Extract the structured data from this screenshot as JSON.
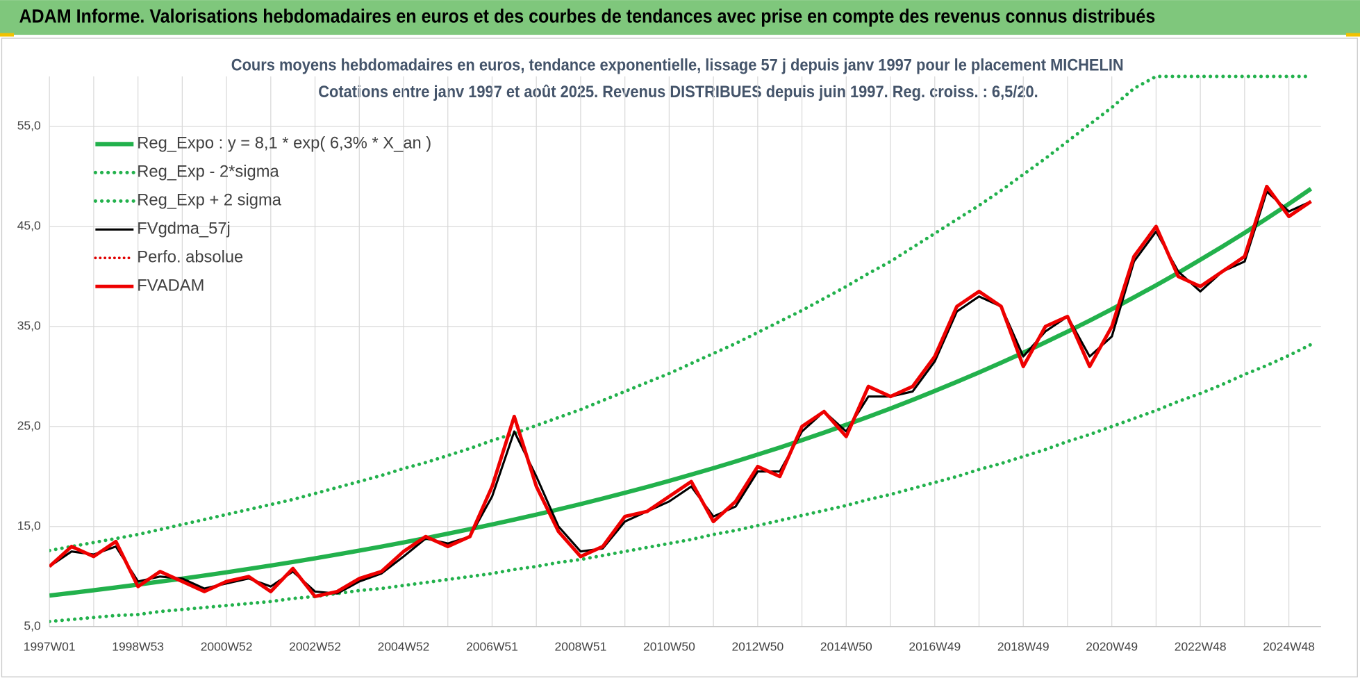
{
  "header": {
    "title": "ADAM Informe. Valorisations hebdomadaires en euros et des courbes de tendances avec prise en compte des revenus connus distribués"
  },
  "chart_data": {
    "type": "line",
    "title": "Cours moyens hebdomadaires en euros, tendance exponentielle, lissage 57 j depuis janv 1997 pour le placement MICHELIN",
    "subtitle": "Cotations entre janv 1997 et août 2025.  Revenus DISTRIBUES depuis juin 1997. Reg. croiss. : 6,5/20.",
    "categories": [
      "1997W01",
      null,
      null,
      null,
      "1998W53",
      null,
      null,
      null,
      "2000W52",
      null,
      null,
      null,
      "2002W52",
      null,
      null,
      null,
      "2004W52",
      null,
      null,
      null,
      "2006W51",
      null,
      null,
      null,
      "2008W51",
      null,
      null,
      null,
      "2010W50",
      null,
      null,
      null,
      "2012W50",
      null,
      null,
      null,
      "2014W50",
      null,
      null,
      null,
      "2016W49",
      null,
      null,
      null,
      "2018W49",
      null,
      null,
      null,
      "2020W49",
      null,
      null,
      null,
      "2022W48",
      null,
      null,
      null,
      "2024W48",
      null
    ],
    "ylim": [
      5,
      60
    ],
    "yticks": [
      {
        "value": 5,
        "label": "5,0"
      },
      {
        "value": 15,
        "label": "15,0"
      },
      {
        "value": 25,
        "label": "25,0"
      },
      {
        "value": 35,
        "label": "35,0"
      },
      {
        "value": 45,
        "label": "45,0"
      },
      {
        "value": 55,
        "label": "55,0"
      }
    ],
    "grid": true,
    "legend": "top-left",
    "series": [
      {
        "name": "Reg_Expo : y = 8,1 * exp( 6,3% *  X_an )",
        "color": "#22b14c",
        "style": "solid",
        "width": 5,
        "values": [
          8.1,
          8.36,
          8.63,
          8.9,
          9.19,
          9.49,
          9.78,
          10.1,
          10.42,
          10.76,
          11.1,
          11.45,
          11.82,
          12.2,
          12.59,
          12.99,
          13.41,
          13.83,
          14.28,
          14.73,
          15.2,
          15.69,
          16.19,
          16.71,
          17.24,
          17.8,
          18.37,
          18.95,
          19.56,
          20.19,
          20.83,
          21.5,
          22.19,
          22.9,
          23.63,
          24.39,
          25.17,
          25.98,
          26.8,
          27.66,
          28.55,
          29.46,
          30.41,
          31.38,
          32.38,
          33.42,
          34.49,
          35.59,
          36.73,
          37.91,
          39.12,
          40.37,
          41.67,
          43.0,
          44.37,
          45.79,
          47.26,
          48.77
        ]
      },
      {
        "name": "Reg_Exp - 2*sigma",
        "color": "#22b14c",
        "style": "dotted",
        "width": 4,
        "values": [
          5.5,
          5.7,
          5.9,
          6.1,
          6.2,
          6.5,
          6.7,
          6.9,
          7.1,
          7.3,
          7.5,
          7.8,
          8.0,
          8.3,
          8.6,
          8.8,
          9.1,
          9.4,
          9.7,
          10.0,
          10.3,
          10.7,
          11.0,
          11.4,
          11.7,
          12.1,
          12.5,
          12.9,
          13.3,
          13.7,
          14.2,
          14.6,
          15.1,
          15.6,
          16.1,
          16.6,
          17.1,
          17.7,
          18.2,
          18.8,
          19.4,
          20.0,
          20.7,
          21.3,
          22.0,
          22.7,
          23.5,
          24.2,
          25.0,
          25.8,
          26.6,
          27.5,
          28.3,
          29.2,
          30.2,
          31.1,
          32.1,
          33.2
        ]
      },
      {
        "name": "Reg_Exp + 2 sigma",
        "color": "#22b14c",
        "style": "dotted",
        "width": 4,
        "values": [
          12.6,
          13.0,
          13.4,
          13.8,
          14.2,
          14.7,
          15.2,
          15.7,
          16.2,
          16.7,
          17.2,
          17.7,
          18.3,
          18.9,
          19.5,
          20.1,
          20.8,
          21.4,
          22.1,
          22.8,
          23.6,
          24.3,
          25.1,
          25.9,
          26.7,
          27.6,
          28.5,
          29.4,
          30.3,
          31.3,
          32.3,
          33.3,
          34.4,
          35.5,
          36.6,
          37.8,
          39.0,
          40.3,
          41.5,
          42.9,
          44.3,
          45.7,
          47.1,
          48.6,
          50.2,
          51.8,
          53.5,
          55.2,
          56.9,
          58.8,
          60,
          60,
          60,
          60,
          60,
          60,
          60,
          60
        ]
      },
      {
        "name": "FVgdma_57j",
        "color": "#000000",
        "style": "solid",
        "width": 2.5,
        "values": [
          11,
          12.5,
          12.2,
          13.0,
          9.5,
          10.0,
          9.8,
          8.8,
          9.3,
          9.8,
          9.0,
          10.5,
          8.5,
          8.3,
          9.5,
          10.3,
          12.0,
          13.8,
          13.3,
          14.0,
          18.0,
          24.5,
          20.0,
          15.0,
          12.5,
          12.8,
          15.5,
          16.5,
          17.5,
          19.0,
          16.0,
          17.0,
          20.5,
          20.5,
          24.5,
          26.5,
          24.5,
          28.0,
          28.0,
          28.5,
          31.5,
          36.5,
          38.0,
          37.0,
          32.0,
          34.5,
          36.0,
          32.0,
          34.0,
          41.5,
          44.5,
          40.5,
          38.5,
          40.5,
          41.5,
          48.5,
          46.5,
          47.5
        ]
      },
      {
        "name": "Perfo. absolue",
        "color": "#e00000",
        "style": "dotted",
        "width": 3
      },
      {
        "name": "FVADAM",
        "color": "#ee0000",
        "style": "solid",
        "width": 4,
        "values": [
          11,
          13.0,
          12.0,
          13.5,
          9.0,
          10.5,
          9.5,
          8.5,
          9.5,
          10.0,
          8.5,
          10.8,
          8.0,
          8.5,
          9.8,
          10.5,
          12.5,
          14.0,
          13.0,
          14.0,
          19.0,
          26.0,
          19.0,
          14.5,
          12.0,
          13.0,
          16.0,
          16.5,
          18.0,
          19.5,
          15.5,
          17.5,
          21.0,
          20.0,
          25.0,
          26.5,
          24.0,
          29.0,
          28.0,
          29.0,
          32.0,
          37.0,
          38.5,
          37.0,
          31.0,
          35.0,
          36.0,
          31.0,
          35.0,
          42.0,
          45.0,
          40.0,
          39.0,
          40.5,
          42.0,
          49.0,
          46.0,
          47.5
        ]
      }
    ]
  }
}
